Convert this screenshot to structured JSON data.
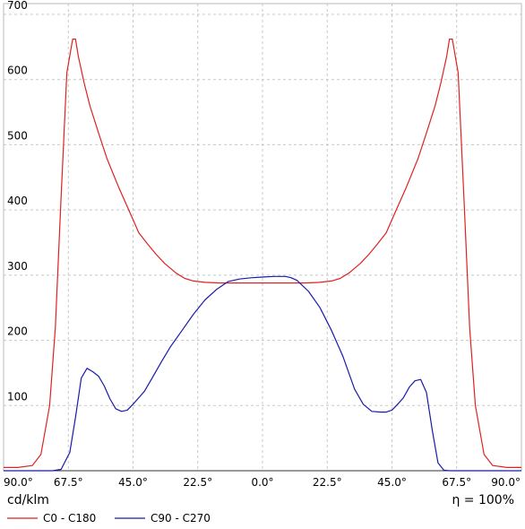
{
  "chart_data": {
    "type": "line",
    "title": "",
    "unit_label": "cd/klm",
    "efficiency_label": "η = 100%",
    "x_tick_labels": [
      "90.0°",
      "67.5°",
      "45.0°",
      "22.5°",
      "0.0°",
      "22.5°",
      "45.0°",
      "67.5°",
      "90.0°"
    ],
    "x_tick_values": [
      -90,
      -67.5,
      -45,
      -22.5,
      0,
      22.5,
      45,
      67.5,
      90
    ],
    "xlim": [
      -90,
      90
    ],
    "y_tick_labels": [
      "100",
      "200",
      "300",
      "400",
      "500",
      "600",
      "700"
    ],
    "y_tick_values": [
      100,
      200,
      300,
      400,
      500,
      600,
      700
    ],
    "ylim": [
      0,
      700
    ],
    "grid": true,
    "legend_position": "bottom-left",
    "colors": {
      "c0": "#dd2222",
      "c90": "#1a1aaa",
      "grid": "#c8c8c8",
      "axis": "#333333"
    },
    "series": [
      {
        "name": "C0 - C180",
        "color": "#dd2222",
        "x": [
          -90,
          -85,
          -80,
          -77,
          -74,
          -72,
          -70,
          -68,
          -66,
          -65,
          -64,
          -62,
          -60,
          -57,
          -54,
          -50,
          -47,
          -45,
          -43,
          -40,
          -37,
          -34,
          -30,
          -27,
          -24,
          -20,
          -15,
          -10,
          -5,
          0,
          5,
          10,
          15,
          20,
          24,
          27,
          30,
          34,
          37,
          40,
          43,
          45,
          47,
          50,
          54,
          57,
          60,
          62,
          64,
          65,
          66,
          68,
          70,
          72,
          74,
          77,
          80,
          85,
          90
        ],
        "values": [
          5,
          5,
          8,
          25,
          100,
          220,
          420,
          610,
          662,
          662,
          635,
          595,
          560,
          518,
          478,
          435,
          405,
          385,
          365,
          348,
          332,
          318,
          303,
          295,
          291,
          289,
          288,
          288,
          288,
          288,
          288,
          288,
          288,
          289,
          291,
          295,
          303,
          318,
          332,
          348,
          365,
          385,
          405,
          435,
          478,
          518,
          560,
          595,
          635,
          662,
          662,
          610,
          420,
          220,
          100,
          25,
          8,
          5,
          5
        ]
      },
      {
        "name": "C90 - C270",
        "color": "#1a1aaa",
        "x": [
          -90,
          -80,
          -73,
          -70,
          -67,
          -65,
          -63,
          -61,
          -59,
          -57,
          -55,
          -53,
          -51,
          -49,
          -47,
          -45,
          -43,
          -41,
          -38,
          -35,
          -32,
          -28,
          -24,
          -20,
          -16,
          -12,
          -8,
          -4,
          0,
          4,
          8,
          10,
          12,
          16,
          20,
          24,
          28,
          32,
          35,
          38,
          41,
          43,
          45,
          47,
          49,
          51,
          53,
          55,
          57,
          59,
          61,
          63,
          65,
          67,
          70,
          73,
          80,
          90
        ],
        "values": [
          0,
          0,
          0,
          2,
          28,
          82,
          142,
          157,
          152,
          145,
          130,
          110,
          95,
          91,
          93,
          102,
          112,
          122,
          145,
          168,
          190,
          215,
          240,
          262,
          278,
          290,
          294,
          296,
          297,
          298,
          298,
          296,
          292,
          275,
          250,
          215,
          175,
          125,
          102,
          91,
          90,
          90,
          93,
          102,
          112,
          128,
          138,
          140,
          120,
          62,
          12,
          1,
          0,
          0,
          0,
          0,
          0,
          0
        ]
      }
    ]
  }
}
